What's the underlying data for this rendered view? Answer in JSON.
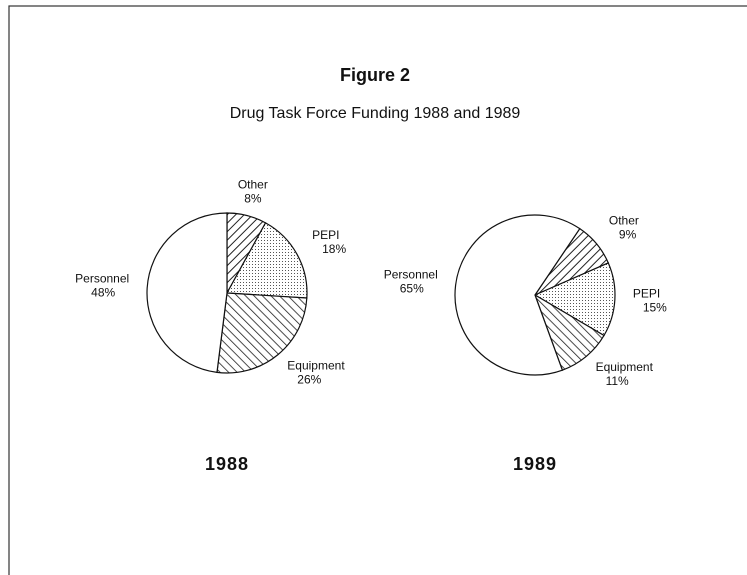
{
  "figure": {
    "title": "Figure 2",
    "subtitle": "Drug Task Force Funding 1988 and 1989"
  },
  "chart_data": [
    {
      "type": "pie",
      "title": "1988",
      "categories": [
        "Other",
        "PEPI",
        "Equipment",
        "Personnel"
      ],
      "values": [
        8,
        18,
        26,
        48
      ],
      "value_labels": [
        "8%",
        "18%",
        "26%",
        "48%"
      ]
    },
    {
      "type": "pie",
      "title": "1989",
      "categories": [
        "Other",
        "PEPI",
        "Equipment",
        "Personnel"
      ],
      "values": [
        9,
        15,
        11,
        65
      ],
      "value_labels": [
        "9%",
        "15%",
        "11%",
        "65%"
      ]
    }
  ]
}
